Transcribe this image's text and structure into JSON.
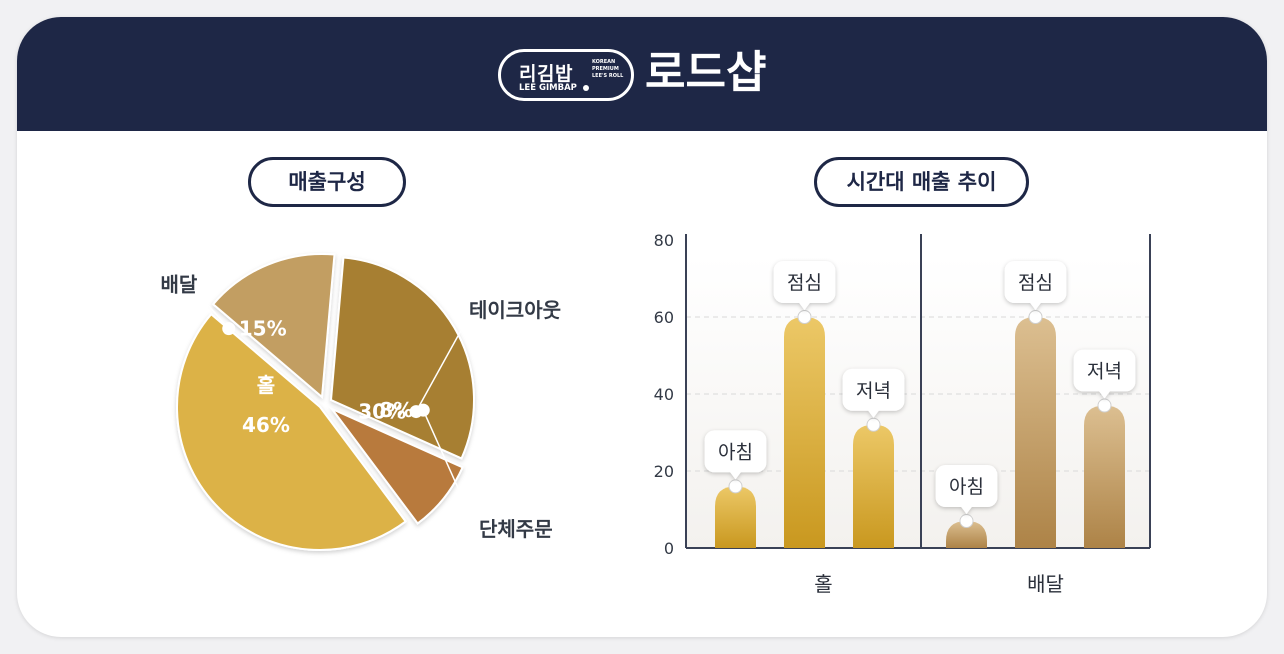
{
  "header": {
    "logo": {
      "main": "리김밥",
      "sub": "LEE GIMBAP",
      "tagline": [
        "KOREAN",
        "PREMIUM",
        "LEE'S ROLL"
      ]
    },
    "store_name": "로드샵"
  },
  "colors": {
    "navy": "#1e2746",
    "gold_light": "#e2b84c",
    "gold_dark": "#c9971f",
    "tan_light": "#d6b788",
    "tan_dark": "#b38a54"
  },
  "chart_data": [
    {
      "type": "pie",
      "title": "매출구성",
      "slices": [
        {
          "label": "테이크아웃",
          "value": 30,
          "value_label": "30%",
          "color": "#a77f30"
        },
        {
          "label": "단체주문",
          "value": 8,
          "value_label": "8%",
          "color": "#b87a3c"
        },
        {
          "label": "홀",
          "value": 46,
          "value_label": "46%",
          "color": "#dcb247"
        },
        {
          "label": "배달",
          "value": 15,
          "value_label": "15%",
          "color": "#c29e62"
        }
      ]
    },
    {
      "type": "bar",
      "title": "시간대 매출 추이",
      "ylim": [
        0,
        80
      ],
      "yticks": [
        0,
        20,
        40,
        60,
        80
      ],
      "grid": true,
      "groups": [
        {
          "name": "홀",
          "style": "gold",
          "bars": [
            {
              "label": "아침",
              "value": 16
            },
            {
              "label": "점심",
              "value": 60
            },
            {
              "label": "저녁",
              "value": 32
            }
          ]
        },
        {
          "name": "배달",
          "style": "tan",
          "bars": [
            {
              "label": "아침",
              "value": 7
            },
            {
              "label": "점심",
              "value": 60
            },
            {
              "label": "저녁",
              "value": 37
            }
          ]
        }
      ]
    }
  ]
}
